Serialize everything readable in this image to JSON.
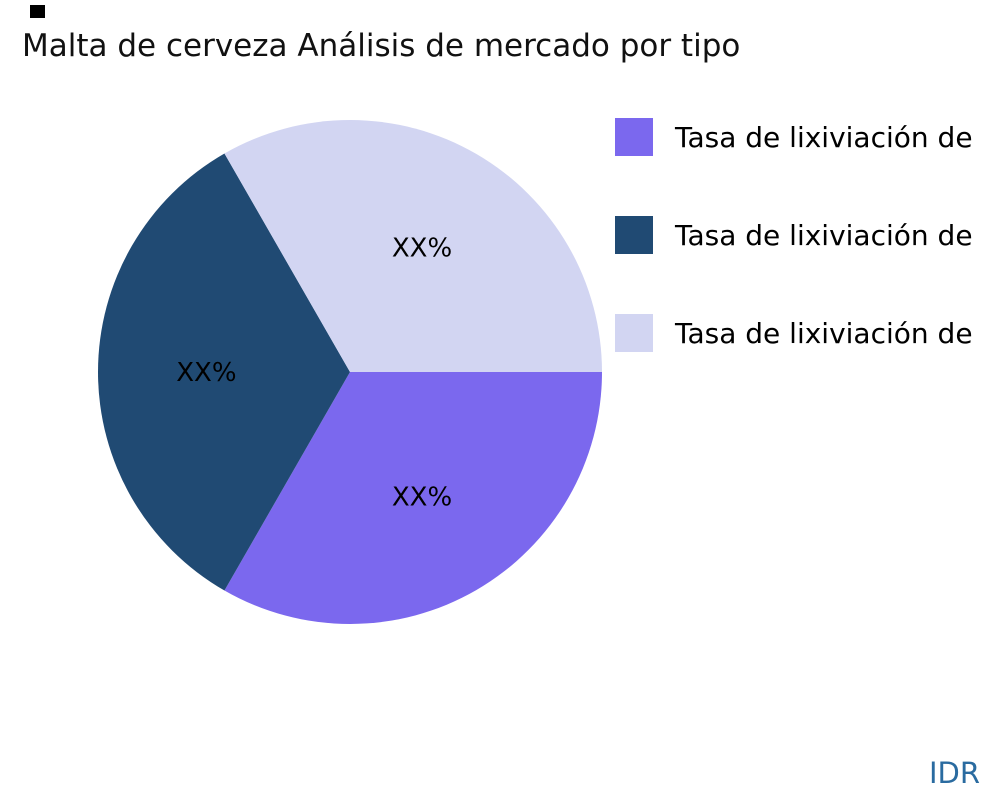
{
  "page": {
    "watermark": "IDR"
  },
  "chart_data": {
    "type": "pie",
    "title": "Malta de cerveza Análisis de mercado por tipo",
    "legend_position": "right",
    "start_angle_deg": 0,
    "slices": [
      {
        "label": "Tasa de lixiviación de",
        "value": 33.3,
        "display_label": "XX%",
        "color": "#7B68EE"
      },
      {
        "label": "Tasa de lixiviación de",
        "value": 33.4,
        "display_label": "XX%",
        "color": "#204A73"
      },
      {
        "label": "Tasa de lixiviación de",
        "value": 33.3,
        "display_label": "XX%",
        "color": "#D2D5F2"
      }
    ]
  }
}
